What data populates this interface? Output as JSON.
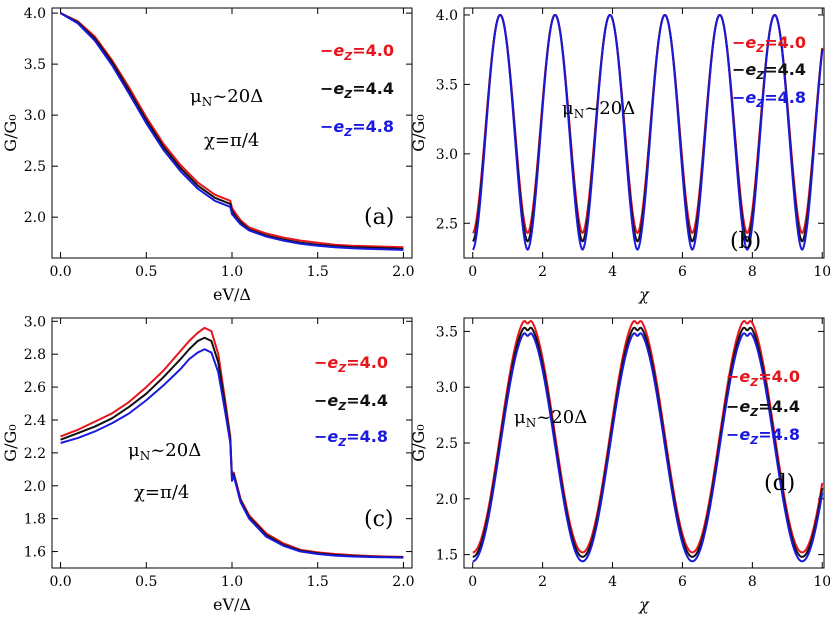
{
  "chart_data": [
    {
      "type": "line",
      "panel_label": "(a)",
      "xlabel": "eV/Δ",
      "ylabel": "G/G₀",
      "xlim": [
        -0.05,
        2.05
      ],
      "ylim": [
        1.6,
        4.05
      ],
      "xticks": [
        "0.0",
        "0.5",
        "1.0",
        "1.5",
        "2.0"
      ],
      "xtick_values": [
        0,
        0.5,
        1.0,
        1.5,
        2.0
      ],
      "yticks": [
        "2.0",
        "2.5",
        "3.0",
        "3.5",
        "4.0"
      ],
      "ytick_values": [
        2.0,
        2.5,
        3.0,
        3.5,
        4.0
      ],
      "annotations": [
        "μ_N~20Δ",
        "χ=π/4"
      ],
      "legend": [
        "−e_Z=4.0",
        "−e_Z=4.4",
        "−e_Z=4.8"
      ],
      "series": [
        {
          "name": "−e_Z=4.0",
          "color": "#e8141b",
          "x": [
            0,
            0.1,
            0.2,
            0.3,
            0.4,
            0.5,
            0.6,
            0.7,
            0.8,
            0.9,
            0.99,
            1.0,
            1.02,
            1.05,
            1.1,
            1.2,
            1.3,
            1.4,
            1.5,
            1.6,
            1.7,
            1.8,
            1.9,
            2.0
          ],
          "y": [
            4.0,
            3.92,
            3.77,
            3.54,
            3.27,
            2.98,
            2.72,
            2.51,
            2.34,
            2.22,
            2.16,
            2.09,
            2.04,
            1.97,
            1.9,
            1.84,
            1.8,
            1.77,
            1.75,
            1.73,
            1.72,
            1.715,
            1.71,
            1.705
          ]
        },
        {
          "name": "−e_Z=4.4",
          "color": "#111111",
          "x": [
            0,
            0.1,
            0.2,
            0.3,
            0.4,
            0.5,
            0.6,
            0.7,
            0.8,
            0.9,
            0.99,
            1.0,
            1.02,
            1.05,
            1.1,
            1.2,
            1.3,
            1.4,
            1.5,
            1.6,
            1.7,
            1.8,
            1.9,
            2.0
          ],
          "y": [
            4.0,
            3.91,
            3.75,
            3.52,
            3.24,
            2.95,
            2.69,
            2.48,
            2.31,
            2.19,
            2.13,
            2.06,
            2.01,
            1.95,
            1.88,
            1.82,
            1.78,
            1.75,
            1.73,
            1.715,
            1.705,
            1.7,
            1.695,
            1.69
          ]
        },
        {
          "name": "−e_Z=4.8",
          "color": "#1a1adf",
          "x": [
            0,
            0.1,
            0.2,
            0.3,
            0.4,
            0.5,
            0.6,
            0.7,
            0.8,
            0.9,
            0.99,
            1.0,
            1.02,
            1.05,
            1.1,
            1.2,
            1.3,
            1.4,
            1.5,
            1.6,
            1.7,
            1.8,
            1.9,
            2.0
          ],
          "y": [
            4.0,
            3.9,
            3.73,
            3.49,
            3.21,
            2.92,
            2.66,
            2.45,
            2.28,
            2.16,
            2.1,
            2.03,
            1.99,
            1.93,
            1.87,
            1.81,
            1.77,
            1.74,
            1.72,
            1.705,
            1.695,
            1.69,
            1.685,
            1.68
          ]
        }
      ]
    },
    {
      "type": "line",
      "panel_label": "(b)",
      "xlabel": "χ",
      "ylabel": "G/G₀",
      "xlim": [
        -0.25,
        10.05
      ],
      "ylim": [
        2.25,
        4.05
      ],
      "xticks": [
        "0",
        "2",
        "4",
        "6",
        "8",
        "10"
      ],
      "xtick_values": [
        0,
        2,
        4,
        6,
        8,
        10
      ],
      "yticks": [
        "2.5",
        "3.0",
        "3.5",
        "4.0"
      ],
      "ytick_values": [
        2.5,
        3.0,
        3.5,
        4.0
      ],
      "annotations": [
        "μ_N~20Δ"
      ],
      "legend": [
        "−e_Z=4.0",
        "−e_Z=4.4",
        "−e_Z=4.8"
      ],
      "curve_model": {
        "kind": "periodic-peaks",
        "period": 1.5708,
        "peak_at": 0.7854,
        "peak": 4.0,
        "sharpness": 1.8
      },
      "series": [
        {
          "name": "−e_Z=4.0",
          "color": "#e8141b",
          "min": 2.43
        },
        {
          "name": "−e_Z=4.4",
          "color": "#111111",
          "min": 2.37
        },
        {
          "name": "−e_Z=4.8",
          "color": "#1a1adf",
          "min": 2.31
        }
      ]
    },
    {
      "type": "line",
      "panel_label": "(c)",
      "xlabel": "eV/Δ",
      "ylabel": "G/G₀",
      "xlim": [
        -0.05,
        2.05
      ],
      "ylim": [
        1.5,
        3.02
      ],
      "xticks": [
        "0.0",
        "0.5",
        "1.0",
        "1.5",
        "2.0"
      ],
      "xtick_values": [
        0,
        0.5,
        1.0,
        1.5,
        2.0
      ],
      "yticks": [
        "1.6",
        "1.8",
        "2.0",
        "2.2",
        "2.4",
        "2.6",
        "2.8",
        "3.0"
      ],
      "ytick_values": [
        1.6,
        1.8,
        2.0,
        2.2,
        2.4,
        2.6,
        2.8,
        3.0
      ],
      "annotations": [
        "μ_N~20Δ",
        "χ=π/4"
      ],
      "legend": [
        "−e_Z=4.0",
        "−e_Z=4.4",
        "−e_Z=4.8"
      ],
      "series": [
        {
          "name": "−e_Z=4.0",
          "color": "#e8141b",
          "x": [
            0,
            0.1,
            0.2,
            0.3,
            0.4,
            0.5,
            0.6,
            0.7,
            0.75,
            0.8,
            0.84,
            0.88,
            0.92,
            0.96,
            0.99,
            1.0,
            1.01,
            1.05,
            1.1,
            1.2,
            1.3,
            1.4,
            1.5,
            1.6,
            1.7,
            1.8,
            1.9,
            2.0
          ],
          "y": [
            2.3,
            2.34,
            2.39,
            2.44,
            2.51,
            2.6,
            2.7,
            2.82,
            2.88,
            2.93,
            2.96,
            2.94,
            2.8,
            2.52,
            2.3,
            2.05,
            2.08,
            1.92,
            1.82,
            1.71,
            1.65,
            1.61,
            1.595,
            1.585,
            1.578,
            1.573,
            1.57,
            1.568
          ]
        },
        {
          "name": "−e_Z=4.4",
          "color": "#111111",
          "x": [
            0,
            0.1,
            0.2,
            0.3,
            0.4,
            0.5,
            0.6,
            0.7,
            0.75,
            0.8,
            0.84,
            0.88,
            0.92,
            0.96,
            0.99,
            1.0,
            1.01,
            1.05,
            1.1,
            1.2,
            1.3,
            1.4,
            1.5,
            1.6,
            1.7,
            1.8,
            1.9,
            2.0
          ],
          "y": [
            2.28,
            2.32,
            2.36,
            2.41,
            2.48,
            2.56,
            2.66,
            2.77,
            2.83,
            2.88,
            2.9,
            2.88,
            2.75,
            2.49,
            2.28,
            2.04,
            2.07,
            1.91,
            1.81,
            1.7,
            1.64,
            1.605,
            1.59,
            1.58,
            1.574,
            1.57,
            1.567,
            1.565
          ]
        },
        {
          "name": "−e_Z=4.8",
          "color": "#1a1adf",
          "x": [
            0,
            0.1,
            0.2,
            0.3,
            0.4,
            0.5,
            0.6,
            0.7,
            0.75,
            0.8,
            0.84,
            0.88,
            0.92,
            0.96,
            0.99,
            1.0,
            1.01,
            1.05,
            1.1,
            1.2,
            1.3,
            1.4,
            1.5,
            1.6,
            1.7,
            1.8,
            1.9,
            2.0
          ],
          "y": [
            2.26,
            2.29,
            2.33,
            2.38,
            2.44,
            2.52,
            2.61,
            2.71,
            2.77,
            2.81,
            2.83,
            2.81,
            2.69,
            2.45,
            2.26,
            2.03,
            2.06,
            1.9,
            1.8,
            1.69,
            1.635,
            1.6,
            1.585,
            1.575,
            1.57,
            1.567,
            1.565,
            1.563
          ]
        }
      ]
    },
    {
      "type": "line",
      "panel_label": "(d)",
      "xlabel": "χ",
      "ylabel": "G/G₀",
      "xlim": [
        -0.25,
        10.05
      ],
      "ylim": [
        1.38,
        3.62
      ],
      "xticks": [
        "0",
        "2",
        "4",
        "6",
        "8",
        "10"
      ],
      "xtick_values": [
        0,
        2,
        4,
        6,
        8,
        10
      ],
      "yticks": [
        "1.5",
        "2.0",
        "2.5",
        "3.0",
        "3.5"
      ],
      "ytick_values": [
        1.5,
        2.0,
        2.5,
        3.0,
        3.5
      ],
      "annotations": [
        "μ_N~20Δ"
      ],
      "legend": [
        "−e_Z=4.0",
        "−e_Z=4.4",
        "−e_Z=4.8"
      ],
      "curve_model": {
        "kind": "periodic-double-peaks",
        "period": 3.1416,
        "peak_at": 1.5708,
        "split": 0.13,
        "dip": 0.05
      },
      "series": [
        {
          "name": "−e_Z=4.0",
          "color": "#e8141b",
          "min": 1.52,
          "max": 3.57
        },
        {
          "name": "−e_Z=4.4",
          "color": "#111111",
          "min": 1.48,
          "max": 3.51
        },
        {
          "name": "−e_Z=4.8",
          "color": "#1a1adf",
          "min": 1.44,
          "max": 3.46
        }
      ]
    }
  ]
}
